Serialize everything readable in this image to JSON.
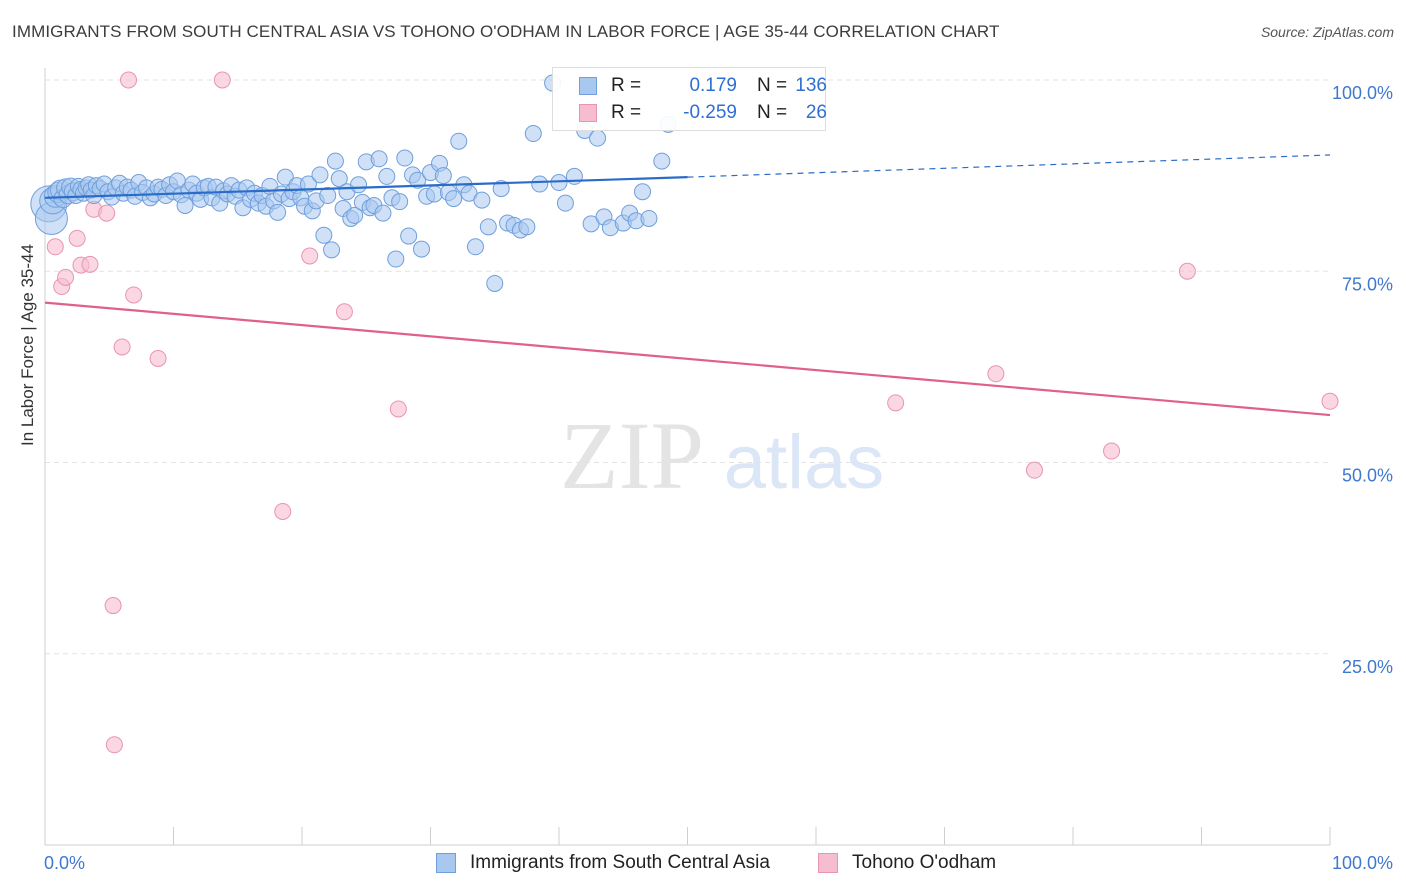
{
  "header": {
    "title": "IMMIGRANTS FROM SOUTH CENTRAL ASIA VS TOHONO O'ODHAM IN LABOR FORCE | AGE 35-44 CORRELATION CHART",
    "source": "Source: ZipAtlas.com"
  },
  "watermark": {
    "zip": "ZIP",
    "atlas": "atlas"
  },
  "legend": {
    "rows": [
      {
        "r_label": "R =",
        "r_value": "0.179",
        "n_label": "N =",
        "n_value": "136"
      },
      {
        "r_label": "R =",
        "r_value": "-0.259",
        "n_label": "N =",
        "n_value": "26"
      }
    ]
  },
  "colors": {
    "blue_fill": "#a9c8f0",
    "blue_stroke": "#6f9fdc",
    "blue_line": "#2b6cc8",
    "pink_fill": "#f6bcd0",
    "pink_stroke": "#e894b2",
    "pink_line": "#e0608c",
    "tick_label": "#3f78d0",
    "grid": "#e3e3e3"
  },
  "chart_data": {
    "type": "scatter",
    "title": "IMMIGRANTS FROM SOUTH CENTRAL ASIA VS TOHONO O'ODHAM IN LABOR FORCE | AGE 35-44 CORRELATION CHART",
    "xlabel": "",
    "ylabel": "In Labor Force | Age 35-44",
    "xlim": [
      0,
      100
    ],
    "ylim": [
      0,
      102
    ],
    "x_tick_labels": [
      "0.0%",
      "100.0%"
    ],
    "y_ticks": [
      25,
      50,
      75,
      100
    ],
    "y_tick_labels": [
      "25.0%",
      "50.0%",
      "75.0%",
      "100.0%"
    ],
    "grid": true,
    "legend_position": "bottom",
    "series": [
      {
        "name": "Immigrants from South Central Asia",
        "color": "#a9c8f0",
        "trend": {
          "x0": 0,
          "y0": 84.6,
          "x1": 50,
          "y1": 87.3,
          "dashed_to": 100,
          "dashed_y": 90.2
        },
        "points": [
          [
            0.3,
            83.8,
            18
          ],
          [
            0.5,
            81.9,
            16
          ],
          [
            0.6,
            84.2,
            13
          ],
          [
            0.8,
            84.8,
            11
          ],
          [
            1.0,
            85.3,
            10
          ],
          [
            1.2,
            85.6,
            10
          ],
          [
            1.4,
            84.5,
            9
          ],
          [
            1.6,
            85.9,
            9
          ],
          [
            1.8,
            85.0,
            9
          ],
          [
            2.0,
            86.0,
            9
          ],
          [
            2.2,
            85.4,
            9
          ],
          [
            2.4,
            84.9,
            8
          ],
          [
            2.6,
            86.1,
            8
          ],
          [
            2.8,
            85.7,
            8
          ],
          [
            3.0,
            85.2,
            8
          ],
          [
            3.2,
            85.9,
            8
          ],
          [
            3.4,
            86.3,
            8
          ],
          [
            3.6,
            85.6,
            8
          ],
          [
            3.8,
            84.9,
            8
          ],
          [
            4.0,
            86.2,
            8
          ],
          [
            4.3,
            85.8,
            8
          ],
          [
            4.6,
            86.4,
            8
          ],
          [
            4.9,
            85.4,
            8
          ],
          [
            5.2,
            84.7,
            8
          ],
          [
            5.5,
            85.9,
            8
          ],
          [
            5.8,
            86.5,
            8
          ],
          [
            6.1,
            85.2,
            8
          ],
          [
            6.4,
            86.0,
            8
          ],
          [
            6.7,
            85.6,
            8
          ],
          [
            7.0,
            84.8,
            8
          ],
          [
            7.3,
            86.6,
            8
          ],
          [
            7.6,
            85.3,
            8
          ],
          [
            7.9,
            85.9,
            8
          ],
          [
            8.2,
            84.6,
            8
          ],
          [
            8.5,
            85.1,
            8
          ],
          [
            8.8,
            86.0,
            8
          ],
          [
            9.1,
            85.7,
            8
          ],
          [
            9.4,
            84.9,
            8
          ],
          [
            9.7,
            86.3,
            8
          ],
          [
            10.0,
            85.4,
            8
          ],
          [
            10.3,
            86.8,
            8
          ],
          [
            10.6,
            85.0,
            8
          ],
          [
            10.9,
            83.6,
            8
          ],
          [
            11.2,
            85.6,
            8
          ],
          [
            11.5,
            86.4,
            8
          ],
          [
            11.8,
            85.2,
            8
          ],
          [
            12.1,
            84.4,
            8
          ],
          [
            12.4,
            85.9,
            8
          ],
          [
            12.7,
            86.1,
            8
          ],
          [
            13.0,
            84.6,
            8
          ],
          [
            13.3,
            86.0,
            8
          ],
          [
            13.6,
            83.9,
            8
          ],
          [
            13.9,
            85.5,
            8
          ],
          [
            14.2,
            85.1,
            8
          ],
          [
            14.5,
            86.2,
            8
          ],
          [
            14.8,
            84.8,
            8
          ],
          [
            15.1,
            85.6,
            8
          ],
          [
            15.4,
            83.3,
            8
          ],
          [
            15.7,
            85.9,
            8
          ],
          [
            16.0,
            84.4,
            8
          ],
          [
            16.3,
            85.2,
            8
          ],
          [
            16.6,
            83.9,
            8
          ],
          [
            16.9,
            84.9,
            8
          ],
          [
            17.2,
            83.5,
            8
          ],
          [
            17.5,
            86.1,
            8
          ],
          [
            17.8,
            84.2,
            8
          ],
          [
            18.1,
            82.7,
            8
          ],
          [
            18.4,
            85.1,
            8
          ],
          [
            18.7,
            87.3,
            8
          ],
          [
            19.0,
            84.5,
            8
          ],
          [
            19.3,
            85.4,
            8
          ],
          [
            19.6,
            86.2,
            8
          ],
          [
            19.9,
            84.6,
            8
          ],
          [
            20.2,
            83.5,
            8
          ],
          [
            20.5,
            86.4,
            8
          ],
          [
            20.8,
            82.9,
            8
          ],
          [
            21.1,
            84.2,
            8
          ],
          [
            21.4,
            87.6,
            8
          ],
          [
            21.7,
            79.7,
            8
          ],
          [
            22.0,
            84.9,
            8
          ],
          [
            22.3,
            77.8,
            8
          ],
          [
            22.6,
            89.4,
            8
          ],
          [
            22.9,
            87.1,
            8
          ],
          [
            23.2,
            83.2,
            8
          ],
          [
            23.5,
            85.4,
            8
          ],
          [
            23.8,
            81.9,
            8
          ],
          [
            24.1,
            82.3,
            8
          ],
          [
            24.4,
            86.3,
            8
          ],
          [
            24.7,
            84.0,
            8
          ],
          [
            25.0,
            89.3,
            8
          ],
          [
            25.3,
            83.3,
            8
          ],
          [
            25.6,
            83.6,
            8
          ],
          [
            26.0,
            89.7,
            8
          ],
          [
            26.3,
            82.6,
            8
          ],
          [
            26.6,
            87.4,
            8
          ],
          [
            27.0,
            84.6,
            8
          ],
          [
            27.3,
            76.6,
            8
          ],
          [
            27.6,
            84.1,
            8
          ],
          [
            28.0,
            89.8,
            8
          ],
          [
            28.3,
            79.6,
            8
          ],
          [
            28.6,
            87.6,
            8
          ],
          [
            29.0,
            86.9,
            8
          ],
          [
            29.3,
            77.9,
            8
          ],
          [
            29.7,
            84.8,
            8
          ],
          [
            30.0,
            87.9,
            8
          ],
          [
            30.3,
            85.1,
            8
          ],
          [
            30.7,
            89.1,
            8
          ],
          [
            31.0,
            87.5,
            8
          ],
          [
            31.4,
            85.3,
            8
          ],
          [
            31.8,
            84.5,
            8
          ],
          [
            32.2,
            92.0,
            8
          ],
          [
            32.6,
            86.3,
            8
          ],
          [
            33.0,
            85.2,
            8
          ],
          [
            33.5,
            78.2,
            8
          ],
          [
            34.0,
            84.3,
            8
          ],
          [
            34.5,
            80.8,
            8
          ],
          [
            35.0,
            73.4,
            8
          ],
          [
            35.5,
            85.8,
            8
          ],
          [
            36.0,
            81.3,
            8
          ],
          [
            36.5,
            81.0,
            8
          ],
          [
            37.0,
            80.4,
            8
          ],
          [
            37.5,
            80.8,
            8
          ],
          [
            38.0,
            93.0,
            8
          ],
          [
            38.5,
            86.4,
            8
          ],
          [
            39.5,
            99.6,
            8
          ],
          [
            40.0,
            86.6,
            8
          ],
          [
            40.5,
            83.9,
            8
          ],
          [
            41.2,
            87.4,
            8
          ],
          [
            42.0,
            93.4,
            8
          ],
          [
            42.5,
            81.2,
            8
          ],
          [
            43.0,
            92.4,
            8
          ],
          [
            43.5,
            82.1,
            8
          ],
          [
            44.0,
            80.7,
            8
          ],
          [
            45.0,
            81.3,
            8
          ],
          [
            45.5,
            82.6,
            8
          ],
          [
            46.0,
            81.6,
            8
          ],
          [
            46.5,
            85.4,
            8
          ],
          [
            47.0,
            81.9,
            8
          ],
          [
            48.0,
            89.4,
            8
          ],
          [
            48.5,
            94.2,
            8
          ]
        ]
      },
      {
        "name": "Tohono O'odham",
        "color": "#f6bcd0",
        "trend": {
          "x0": 0,
          "y0": 70.9,
          "x1": 100,
          "y1": 56.2
        },
        "points": [
          [
            0.8,
            78.2
          ],
          [
            1.3,
            73.0
          ],
          [
            1.6,
            74.2
          ],
          [
            2.5,
            79.3
          ],
          [
            2.8,
            75.8
          ],
          [
            3.5,
            75.9
          ],
          [
            3.8,
            83.1
          ],
          [
            4.8,
            82.6
          ],
          [
            5.3,
            31.3
          ],
          [
            5.4,
            13.1
          ],
          [
            6.0,
            65.1
          ],
          [
            6.5,
            100
          ],
          [
            6.9,
            71.9
          ],
          [
            8.8,
            63.6
          ],
          [
            13.8,
            100
          ],
          [
            18.5,
            43.6
          ],
          [
            20.6,
            77.0
          ],
          [
            23.3,
            69.7
          ],
          [
            27.5,
            57.0
          ],
          [
            66.2,
            57.8
          ],
          [
            74.0,
            61.6
          ],
          [
            77.0,
            49.0
          ],
          [
            83.0,
            51.5
          ],
          [
            88.9,
            75.0
          ],
          [
            100,
            58.0
          ]
        ]
      }
    ]
  },
  "bottom_legend": {
    "items": [
      {
        "label": "Immigrants from South Central Asia"
      },
      {
        "label": "Tohono O'odham"
      }
    ]
  }
}
